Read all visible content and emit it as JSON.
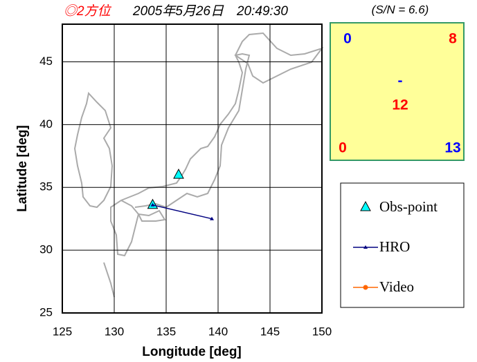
{
  "chart_data": {
    "type": "scatter",
    "title": "◎2方位",
    "subtitle": "2005年5月26日　20:49:30",
    "xlabel": "Longitude [deg]",
    "ylabel": "Latitude [deg]",
    "xlim": [
      125,
      150
    ],
    "xticks": [
      125,
      130,
      135,
      140,
      145,
      150
    ],
    "ylim": [
      25,
      48
    ],
    "yticks": [
      25,
      30,
      35,
      40,
      45
    ],
    "grid": true,
    "legend": "right",
    "series": [
      {
        "name": "Obs-point",
        "color": "#00ffff",
        "marker": "triangle",
        "line": false,
        "x": [
          133.7,
          136.2
        ],
        "values": [
          33.6,
          36.0
        ]
      },
      {
        "name": "HRO",
        "color": "#000080",
        "marker": "small-triangle",
        "line": true,
        "x": [
          133.7,
          139.4
        ],
        "values": [
          33.6,
          32.5
        ]
      },
      {
        "name": "Video",
        "color": "#ff6600",
        "marker": "circle",
        "line": true,
        "x": [],
        "values": []
      }
    ]
  },
  "panel": {
    "sn": "(S/N = 6.6)",
    "top_left": "0",
    "top_right": "8",
    "center_top": "-",
    "center": "12",
    "bottom_left": "0",
    "bottom_right": "13"
  }
}
